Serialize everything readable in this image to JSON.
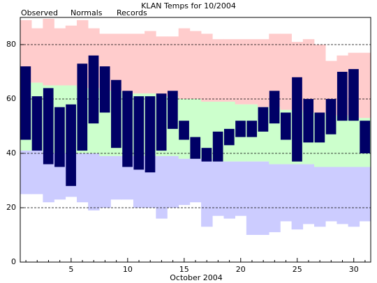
{
  "chart_data": {
    "type": "range",
    "title": "KLAN Temps for 10/2004",
    "x_label": "October 2004",
    "categories": [
      null,
      null,
      null,
      null,
      "5",
      null,
      null,
      null,
      null,
      "10",
      null,
      null,
      null,
      null,
      "15",
      null,
      null,
      null,
      null,
      "20",
      null,
      null,
      null,
      null,
      "25",
      null,
      null,
      null,
      null,
      "30",
      null
    ],
    "ylim": [
      0,
      90
    ],
    "yticks": [
      0,
      20,
      40,
      60,
      80
    ],
    "grid": true,
    "series": [
      {
        "name": "Observed",
        "color": "#000066",
        "high": [
          72,
          61,
          64,
          57,
          58,
          73,
          76,
          72,
          67,
          63,
          61,
          61,
          62,
          63,
          52,
          46,
          42,
          48,
          49,
          52,
          52,
          57,
          63,
          55,
          68,
          60,
          55,
          60,
          70,
          71,
          52
        ],
        "low": [
          45,
          41,
          36,
          35,
          28,
          41,
          51,
          55,
          42,
          35,
          34,
          33,
          41,
          49,
          45,
          38,
          37,
          37,
          43,
          46,
          46,
          48,
          51,
          45,
          37,
          44,
          44,
          47,
          52,
          52,
          40
        ]
      },
      {
        "name": "Normals",
        "color": "#ccffcc",
        "text_color": "#006600",
        "high": [
          66,
          66,
          65,
          65,
          65,
          64,
          64,
          63,
          63,
          62,
          62,
          62,
          61,
          61,
          60,
          60,
          59,
          59,
          59,
          58,
          58,
          57,
          57,
          56,
          56,
          55,
          55,
          54,
          54,
          53,
          53
        ],
        "low": [
          41,
          41,
          40,
          40,
          40,
          40,
          40,
          39,
          39,
          39,
          39,
          39,
          39,
          39,
          38,
          38,
          38,
          37,
          37,
          37,
          37,
          37,
          36,
          36,
          36,
          36,
          35,
          35,
          35,
          35,
          35
        ]
      },
      {
        "name": "Records",
        "color": "#ffcccc",
        "low_color": "#ccccff",
        "text_color": "#dd88cc",
        "high": [
          89,
          86,
          89.5,
          86,
          87,
          89,
          86,
          84,
          84,
          84,
          84,
          85,
          83,
          83,
          86,
          85,
          84,
          82,
          82,
          82,
          82,
          82,
          84,
          84,
          81,
          82,
          80,
          74,
          76,
          77,
          77
        ],
        "low": [
          25,
          25,
          22,
          23,
          24,
          22,
          19,
          20,
          23,
          23,
          20,
          20,
          16,
          20,
          21,
          22,
          13,
          17,
          16,
          17,
          10,
          10,
          11,
          15,
          12,
          14,
          13,
          15,
          14,
          13,
          15
        ]
      }
    ]
  }
}
